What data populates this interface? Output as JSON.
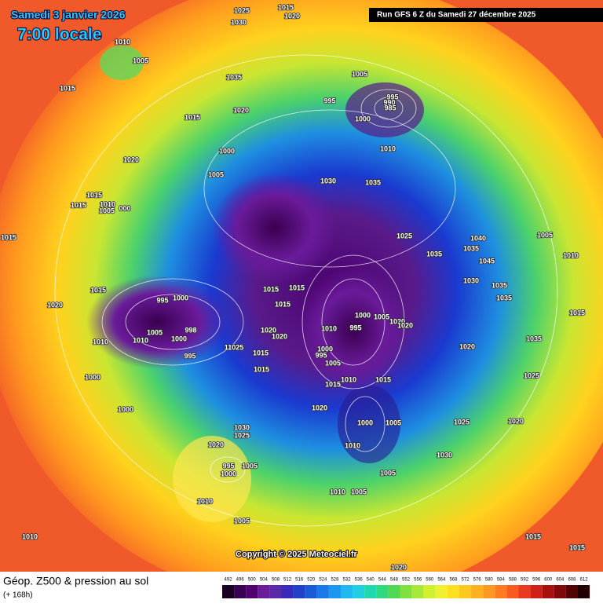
{
  "header": {
    "date": "Samedi 3 janvier 2026",
    "time": "7:00 locale",
    "run": "Run GFS 6 Z du Samedi 27 décembre 2025"
  },
  "copyright": "Copyright © 2025 Meteociel.fr",
  "footer": {
    "title": "Géop. Z500 & pression au sol",
    "lead": "(+ 168h)"
  },
  "legend": {
    "values": [
      492,
      496,
      500,
      504,
      508,
      512,
      516,
      520,
      524,
      528,
      532,
      536,
      540,
      544,
      548,
      552,
      556,
      560,
      564,
      568,
      572,
      576,
      580,
      584,
      588,
      592,
      596,
      600,
      604,
      608,
      612
    ]
  },
  "pressure_labels": [
    "1025",
    "1015",
    "1020",
    "1030",
    "1010",
    "1005",
    "1035",
    "1005",
    "1015",
    "995",
    "990",
    "995",
    "985",
    "1015",
    "1020",
    "1000",
    "1010",
    "1000",
    "1020",
    "1005",
    "1030",
    "1035",
    "1015",
    "1015",
    "1010",
    "1005",
    "000",
    "1015",
    "1025",
    "1040",
    "1035",
    "1005",
    "1010",
    "1035",
    "1045",
    "1030",
    "1035",
    "1035",
    "1015",
    "1015",
    "1015",
    "1015",
    "995",
    "1000",
    "1020",
    "1000",
    "1005",
    "1020",
    "1020",
    "1010",
    "995",
    "1015",
    "1005",
    "998",
    "1020",
    "1020",
    "1010",
    "1010",
    "1000",
    "11025",
    "1015",
    "1000",
    "995",
    "1005",
    "995",
    "1035",
    "1020",
    "1015",
    "1010",
    "1015",
    "1015",
    "1000",
    "1025",
    "1020",
    "1000",
    "1000",
    "1005",
    "1025",
    "1020",
    "1030",
    "1025",
    "1020",
    "1010",
    "1030",
    "995",
    "1005",
    "1000",
    "1005",
    "1010",
    "1005",
    "1010",
    "1005",
    "1010",
    "1015",
    "1015",
    "1020"
  ]
}
